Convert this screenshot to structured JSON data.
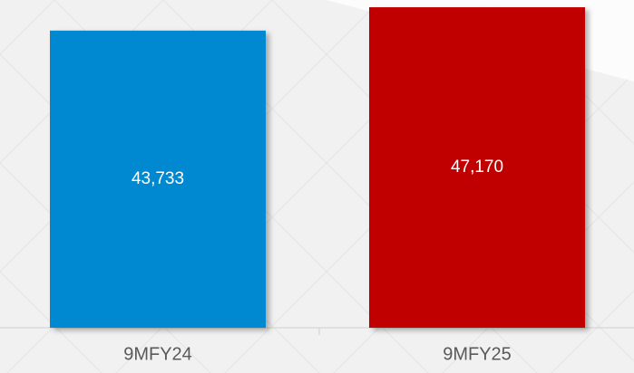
{
  "chart_data": {
    "type": "bar",
    "categories": [
      "9MFY24",
      "9MFY25"
    ],
    "values": [
      43733,
      47170
    ],
    "value_labels": [
      "43,733",
      "47,170"
    ],
    "colors": [
      "#0288d1",
      "#c00000"
    ]
  }
}
